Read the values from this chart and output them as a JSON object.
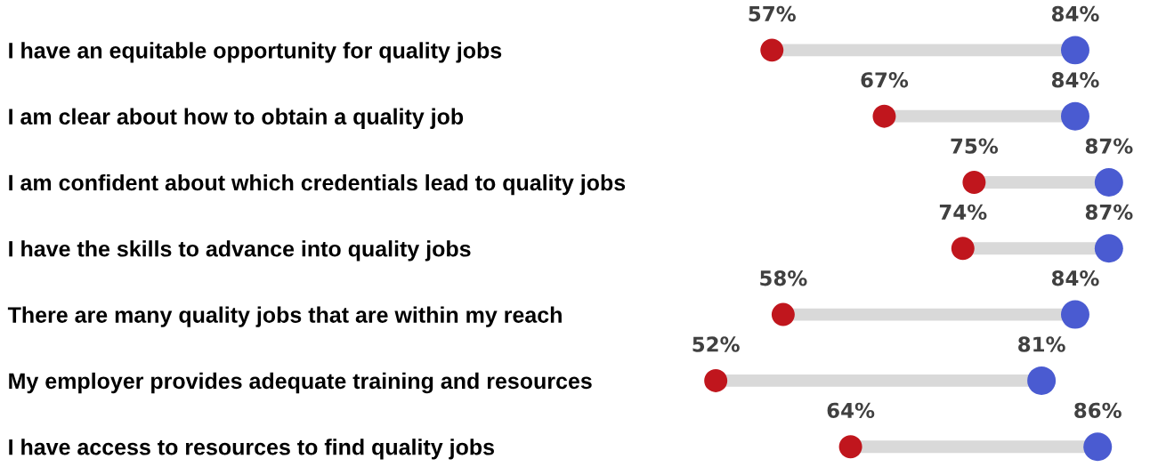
{
  "chart_data": {
    "type": "scatter",
    "orientation": "horizontal",
    "tick_labels": "y",
    "grid": "y",
    "categories": [
      "I have an equitable opportunity for quality jobs",
      "I am clear about how to obtain a quality job",
      "I am confident about which credentials lead to quality jobs",
      "I have the skills to advance into quality jobs",
      "There are many quality jobs that are within my reach",
      "My employer provides adequate training and resources",
      "I have access to resources to find quality jobs"
    ],
    "series": [
      {
        "color": "#c0161d",
        "values": [
          57,
          67,
          75,
          74,
          58,
          52,
          64
        ],
        "value_labels": [
          "57%",
          "67%",
          "75%",
          "74%",
          "58%",
          "52%",
          "64%"
        ]
      },
      {
        "color": "#4a5bd1",
        "values": [
          84,
          84,
          87,
          87,
          84,
          81,
          86
        ],
        "value_labels": [
          "84%",
          "84%",
          "87%",
          "87%",
          "84%",
          "81%",
          "86%"
        ]
      }
    ]
  }
}
